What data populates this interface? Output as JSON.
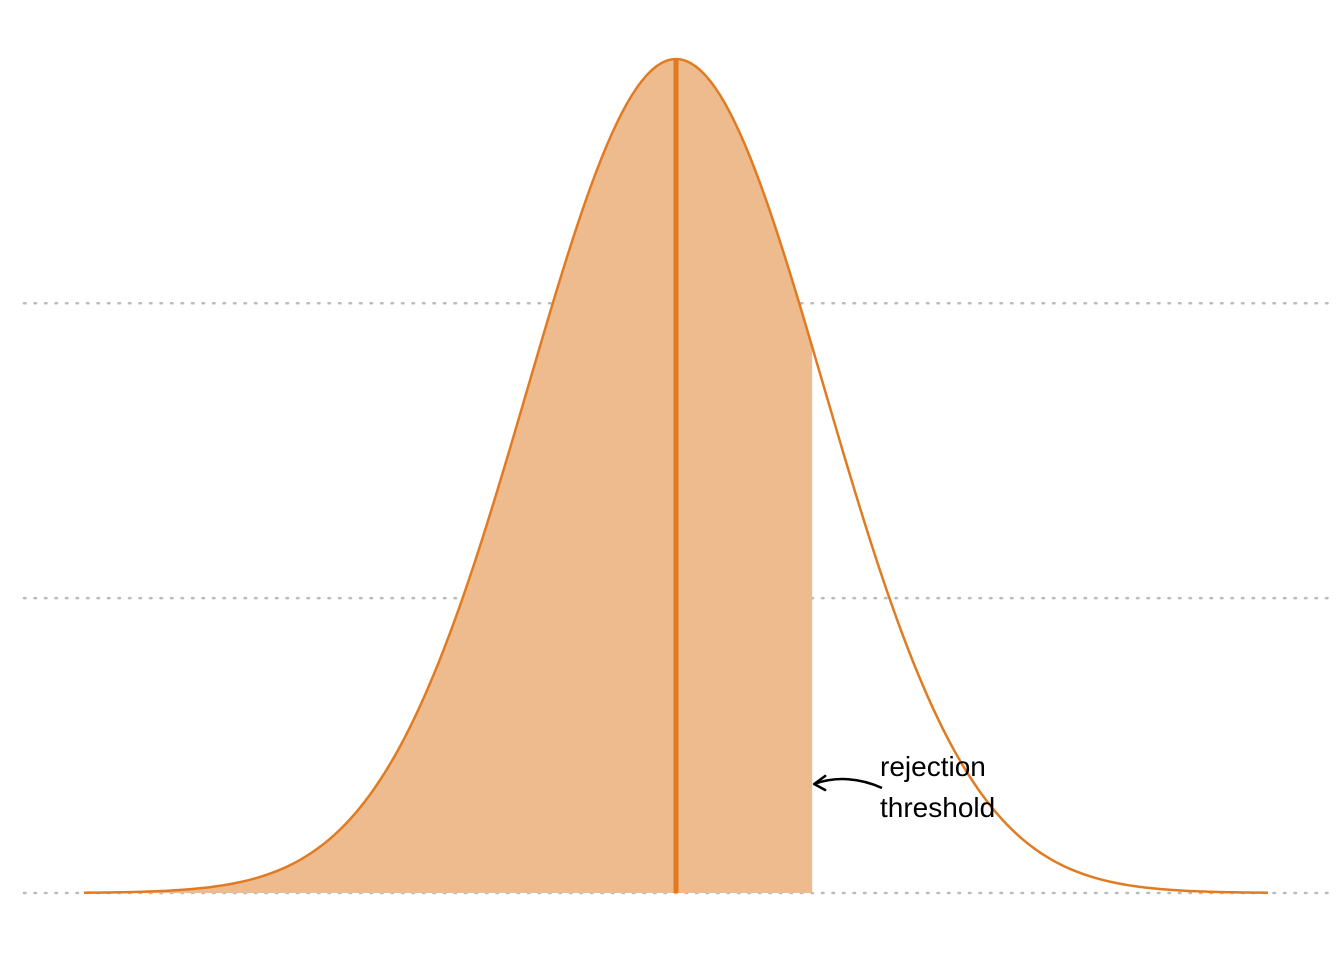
{
  "chart_data": {
    "type": "area",
    "title": "",
    "xlabel": "",
    "ylabel": "",
    "grid": true,
    "xlim": [
      -4,
      4
    ],
    "ylim": [
      0,
      1
    ],
    "gridlines_y": [
      0,
      0.3535,
      0.7071
    ],
    "distribution": {
      "name": "",
      "kind": "normal density",
      "mean": 0,
      "sd": 1
    },
    "mean_line_x": 0,
    "shaded_region": {
      "from": -4,
      "to": 0.92
    },
    "threshold_x": 0.92,
    "annotation": {
      "lines": [
        "rejection",
        "threshold"
      ],
      "points_to": "threshold"
    },
    "colors": {
      "line": "#E07B22",
      "fill": "#EEBB8E",
      "grid": "#BBBBBB",
      "text": "#000000"
    }
  }
}
